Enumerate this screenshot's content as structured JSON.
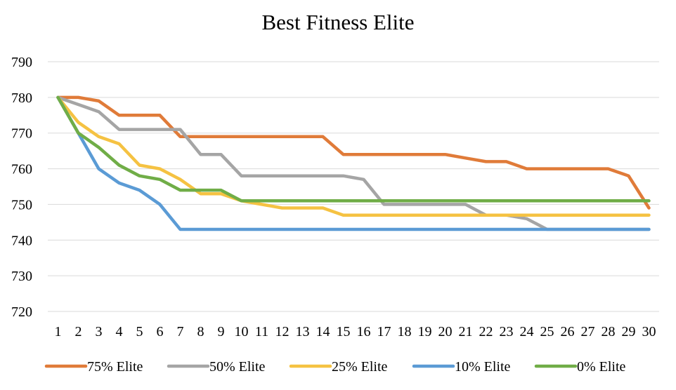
{
  "chart_data": {
    "type": "line",
    "title": "Best Fitness Elite",
    "xlabel": "",
    "ylabel": "",
    "categories": [
      "1",
      "2",
      "3",
      "4",
      "5",
      "6",
      "7",
      "8",
      "9",
      "10",
      "11",
      "12",
      "13",
      "14",
      "15",
      "16",
      "17",
      "18",
      "19",
      "20",
      "21",
      "22",
      "23",
      "24",
      "25",
      "26",
      "27",
      "28",
      "29",
      "30"
    ],
    "ylim": [
      720,
      790
    ],
    "yticks": [
      "720",
      "730",
      "740",
      "750",
      "760",
      "770",
      "780",
      "790"
    ],
    "grid": true,
    "legend": "bottom",
    "series": [
      {
        "name": "75% Elite",
        "color": "#e07b39",
        "values": [
          780,
          780,
          779,
          775,
          775,
          775,
          769,
          769,
          769,
          769,
          769,
          769,
          769,
          769,
          764,
          764,
          764,
          764,
          764,
          764,
          763,
          762,
          762,
          760,
          760,
          760,
          760,
          760,
          758,
          749
        ]
      },
      {
        "name": "50% Elite",
        "color": "#a5a5a5",
        "values": [
          780,
          778,
          776,
          771,
          771,
          771,
          771,
          764,
          764,
          758,
          758,
          758,
          758,
          758,
          758,
          757,
          750,
          750,
          750,
          750,
          750,
          747,
          747,
          746,
          743,
          743,
          743,
          743,
          743,
          743
        ]
      },
      {
        "name": "25% Elite",
        "color": "#f5c242",
        "values": [
          780,
          773,
          769,
          767,
          761,
          760,
          757,
          753,
          753,
          751,
          750,
          749,
          749,
          749,
          747,
          747,
          747,
          747,
          747,
          747,
          747,
          747,
          747,
          747,
          747,
          747,
          747,
          747,
          747,
          747
        ]
      },
      {
        "name": "10% Elite",
        "color": "#5b9bd5",
        "values": [
          780,
          770,
          760,
          756,
          754,
          750,
          743,
          743,
          743,
          743,
          743,
          743,
          743,
          743,
          743,
          743,
          743,
          743,
          743,
          743,
          743,
          743,
          743,
          743,
          743,
          743,
          743,
          743,
          743,
          743
        ]
      },
      {
        "name": "0% Elite",
        "color": "#70ad47",
        "values": [
          780,
          770,
          766,
          761,
          758,
          757,
          754,
          754,
          754,
          751,
          751,
          751,
          751,
          751,
          751,
          751,
          751,
          751,
          751,
          751,
          751,
          751,
          751,
          751,
          751,
          751,
          751,
          751,
          751,
          751
        ]
      }
    ]
  }
}
